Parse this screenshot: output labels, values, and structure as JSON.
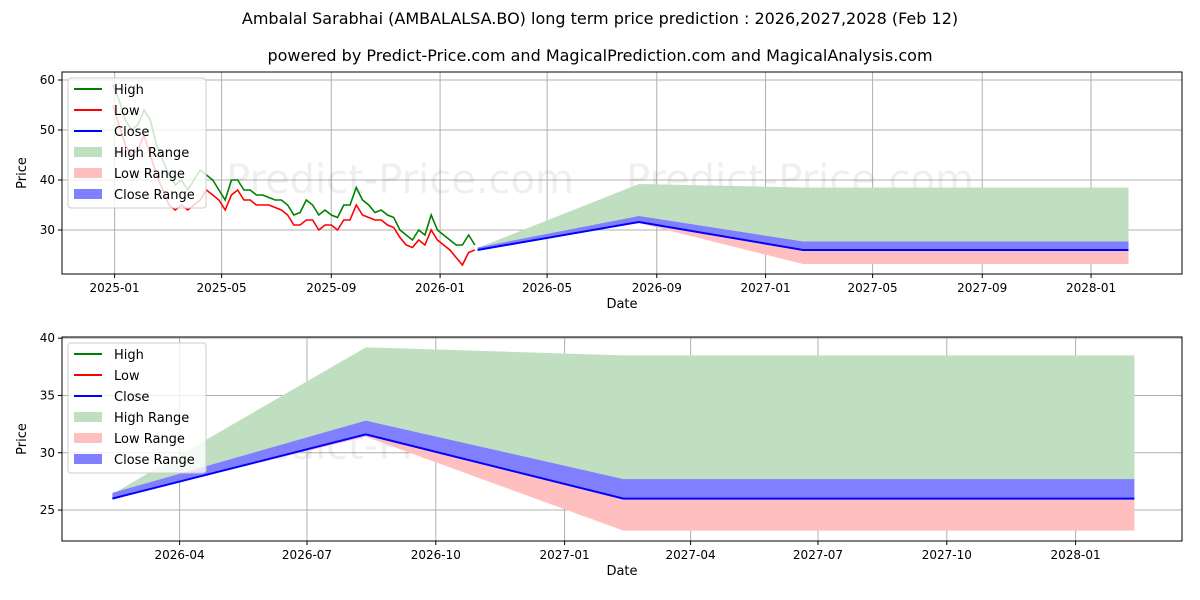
{
  "title": "Ambalal Sarabhai (AMBALALSA.BO) long term price prediction : 2026,2027,2028 (Feb 12)",
  "subtitle": "powered by Predict-Price.com and MagicalPrediction.com and MagicalAnalysis.com",
  "watermark": "Predict-Price.com",
  "colors": {
    "high": "#008000",
    "low": "#ff0000",
    "close": "#0000ff",
    "high_range": "#c0dfc0",
    "low_range": "#ffbfbf",
    "close_range": "#7f7fff"
  },
  "chart_data": [
    {
      "type": "line",
      "title": "",
      "xlabel": "Date",
      "ylabel": "Price",
      "xlim": [
        "2024-11-03",
        "2028-04-12"
      ],
      "ylim": [
        21.2,
        61.6
      ],
      "grid": true,
      "legend_placement": "top-left",
      "legend": [
        "High",
        "Low",
        "Close",
        "High Range",
        "Low Range",
        "Close Range"
      ],
      "xticks": [
        "2025-01",
        "2025-05",
        "2025-09",
        "2026-01",
        "2026-05",
        "2026-09",
        "2027-01",
        "2027-05",
        "2027-09",
        "2028-01"
      ],
      "yticks": [
        30,
        40,
        50,
        60
      ],
      "history": {
        "dates": [
          "2024-12-30",
          "2025-01-06",
          "2025-01-13",
          "2025-01-20",
          "2025-01-27",
          "2025-02-03",
          "2025-02-10",
          "2025-02-17",
          "2025-02-24",
          "2025-03-03",
          "2025-03-10",
          "2025-03-17",
          "2025-03-24",
          "2025-03-31",
          "2025-04-07",
          "2025-04-14",
          "2025-04-21",
          "2025-04-28",
          "2025-05-05",
          "2025-05-12",
          "2025-05-19",
          "2025-05-26",
          "2025-06-02",
          "2025-06-09",
          "2025-06-16",
          "2025-06-23",
          "2025-06-30",
          "2025-07-07",
          "2025-07-14",
          "2025-07-21",
          "2025-07-28",
          "2025-08-04",
          "2025-08-11",
          "2025-08-18",
          "2025-08-25",
          "2025-09-01",
          "2025-09-08",
          "2025-09-15",
          "2025-09-22",
          "2025-09-29",
          "2025-10-06",
          "2025-10-13",
          "2025-10-20",
          "2025-10-27",
          "2025-11-03",
          "2025-11-10",
          "2025-11-17",
          "2025-11-24",
          "2025-12-01",
          "2025-12-08",
          "2025-12-15",
          "2025-12-22",
          "2025-12-29",
          "2026-01-05",
          "2026-01-12",
          "2026-01-19",
          "2026-01-26",
          "2026-02-02",
          "2026-02-09"
        ],
        "high": [
          59,
          56,
          52,
          50,
          51,
          54,
          52,
          47,
          44,
          41,
          39,
          40,
          38,
          40,
          42,
          41,
          40,
          38,
          36,
          40,
          40,
          38,
          38,
          37,
          37,
          36.5,
          36,
          36,
          35,
          33,
          33.5,
          36,
          35,
          33,
          34,
          33,
          32.5,
          35,
          35,
          38.5,
          36,
          35,
          33.5,
          34,
          33,
          32.5,
          30,
          29,
          28,
          30,
          29,
          33,
          30,
          29,
          28,
          27,
          27,
          29,
          27
        ],
        "low": [
          55,
          51,
          47,
          45,
          46,
          49,
          45,
          41,
          38,
          35,
          34,
          35,
          34,
          35,
          36,
          38,
          37,
          36,
          34,
          37,
          38,
          36,
          36,
          35,
          35,
          35,
          34.5,
          34,
          33,
          31,
          31,
          32,
          32,
          30,
          31,
          31,
          30,
          32,
          32,
          35,
          33,
          32.5,
          32,
          32,
          31,
          30.5,
          28.5,
          27,
          26.5,
          28,
          27,
          30,
          28,
          27,
          26,
          24.5,
          23,
          25.5,
          26
        ]
      },
      "forecast": {
        "dates": [
          "2026-02-12",
          "2026-08-12",
          "2027-02-12",
          "2028-02-12"
        ],
        "close": [
          26.0,
          31.6,
          26.0,
          26.0
        ],
        "high_range": [
          [
            26.0,
            26.4
          ],
          [
            31.6,
            39.2
          ],
          [
            26.0,
            38.5
          ],
          [
            26.0,
            38.5
          ]
        ],
        "low_range": [
          [
            26.0,
            26.0
          ],
          [
            31.4,
            31.6
          ],
          [
            23.2,
            26.0
          ],
          [
            23.2,
            26.0
          ]
        ],
        "close_range": [
          [
            26.0,
            26.5
          ],
          [
            31.6,
            32.8
          ],
          [
            26.0,
            27.7
          ],
          [
            26.0,
            27.7
          ]
        ]
      }
    },
    {
      "type": "line",
      "title": "",
      "xlabel": "Date",
      "ylabel": "Price",
      "xlim": [
        "2026-01-07",
        "2028-03-17"
      ],
      "ylim": [
        22.3,
        40.1
      ],
      "grid": true,
      "legend_placement": "top-left",
      "legend": [
        "High",
        "Low",
        "Close",
        "High Range",
        "Low Range",
        "Close Range"
      ],
      "xticks": [
        "2026-04",
        "2026-07",
        "2026-10",
        "2027-01",
        "2027-04",
        "2027-07",
        "2027-10",
        "2028-01"
      ],
      "yticks": [
        25,
        30,
        35,
        40
      ]
    }
  ]
}
